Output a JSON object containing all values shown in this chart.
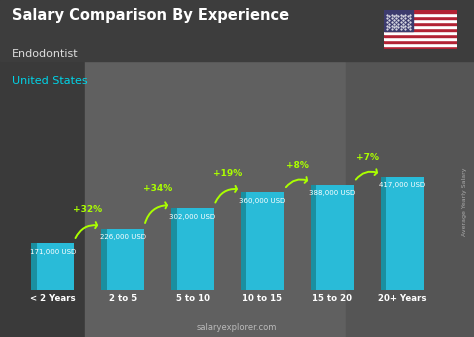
{
  "title": "Salary Comparison By Experience",
  "subtitle1": "Endodontist",
  "subtitle2": "United States",
  "ylabel": "Average Yearly Salary",
  "categories": [
    "< 2 Years",
    "2 to 5",
    "5 to 10",
    "10 to 15",
    "15 to 20",
    "20+ Years"
  ],
  "values": [
    171000,
    226000,
    302000,
    360000,
    388000,
    417000
  ],
  "labels": [
    "171,000 USD",
    "226,000 USD",
    "302,000 USD",
    "360,000 USD",
    "388,000 USD",
    "417,000 USD"
  ],
  "pct_labels": [
    "+32%",
    "+34%",
    "+19%",
    "+8%",
    "+7%"
  ],
  "bar_color": "#29bbd8",
  "bar_color_dark": "#1a8fa0",
  "pct_color": "#aaff00",
  "title_color": "#ffffff",
  "subtitle1_color": "#dddddd",
  "subtitle2_color": "#00d4e8",
  "label_color": "#ffffff",
  "bg_color": "#4a4a4a",
  "footer": "salaryexplorer.com",
  "footer_color": "#bbbbbb",
  "ylabel_color": "#aaaaaa"
}
